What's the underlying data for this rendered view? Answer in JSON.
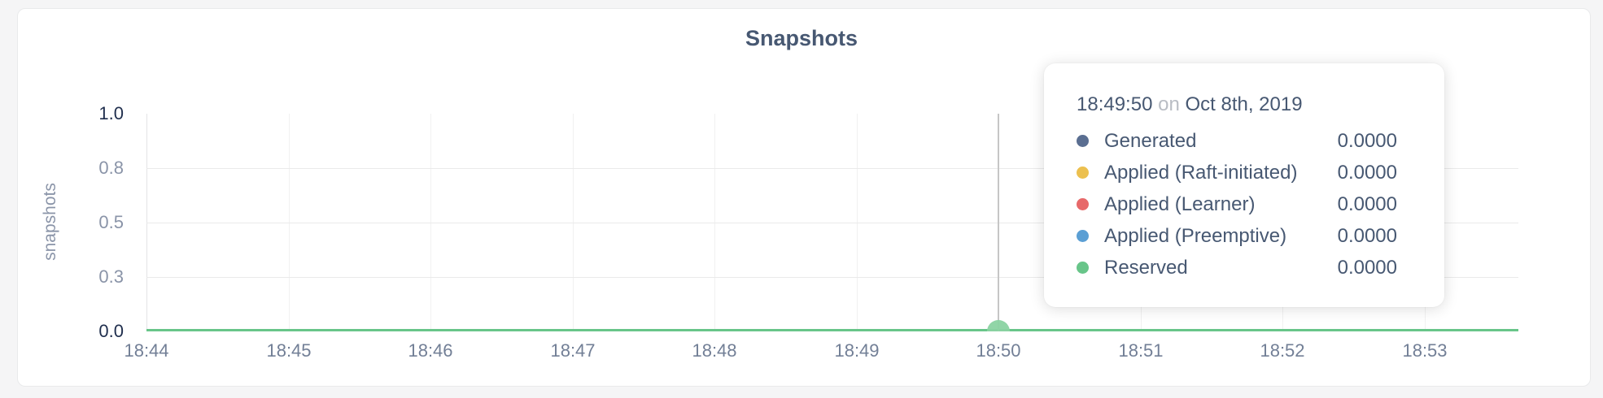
{
  "page": {
    "background": "#f5f5f6"
  },
  "card": {
    "background": "#ffffff",
    "border_color": "#e9eaeb"
  },
  "chart_data": {
    "type": "line",
    "title": "Snapshots",
    "ylabel": "snapshots",
    "xlabel": "",
    "x_tick_labels": [
      "18:44",
      "18:45",
      "18:46",
      "18:47",
      "18:48",
      "18:49",
      "18:50",
      "18:51",
      "18:52",
      "18:53"
    ],
    "y_tick_labels": [
      "1.0",
      "0.8",
      "0.5",
      "0.3",
      "0.0"
    ],
    "y_tick_values": [
      1.0,
      0.75,
      0.5,
      0.25,
      0.0
    ],
    "ylim": [
      0,
      1
    ],
    "x_range": [
      "18:44",
      "18:53:40"
    ],
    "grid": true,
    "legend_position": "tooltip-only",
    "series": [
      {
        "name": "Generated",
        "color": "#5a6e91",
        "values": [
          0,
          0,
          0,
          0,
          0,
          0,
          0,
          0,
          0,
          0
        ]
      },
      {
        "name": "Applied (Raft-initiated)",
        "color": "#ecc04f",
        "values": [
          0,
          0,
          0,
          0,
          0,
          0,
          0,
          0,
          0,
          0
        ]
      },
      {
        "name": "Applied (Learner)",
        "color": "#e7696a",
        "values": [
          0,
          0,
          0,
          0,
          0,
          0,
          0,
          0,
          0,
          0
        ]
      },
      {
        "name": "Applied (Preemptive)",
        "color": "#5b9fd4",
        "values": [
          0,
          0,
          0,
          0,
          0,
          0,
          0,
          0,
          0,
          0
        ]
      },
      {
        "name": "Reserved",
        "color": "#68c589",
        "values": [
          0,
          0,
          0,
          0,
          0,
          0,
          0,
          0,
          0,
          0
        ]
      }
    ]
  },
  "hover": {
    "time": "18:49:50",
    "nearest_tick": "18:50",
    "crosshair_color": "#c6c6c6",
    "point_color": "#8bd3a2"
  },
  "tooltip": {
    "time": "18:49:50",
    "connector": "on",
    "date": "Oct 8th, 2019",
    "rows": [
      {
        "label": "Generated",
        "value": "0.0000",
        "color": "#5a6e91"
      },
      {
        "label": "Applied (Raft-initiated)",
        "value": "0.0000",
        "color": "#ecc04f"
      },
      {
        "label": "Applied (Learner)",
        "value": "0.0000",
        "color": "#e7696a"
      },
      {
        "label": "Applied (Preemptive)",
        "value": "0.0000",
        "color": "#5b9fd4"
      },
      {
        "label": "Reserved",
        "value": "0.0000",
        "color": "#68c589"
      }
    ]
  }
}
